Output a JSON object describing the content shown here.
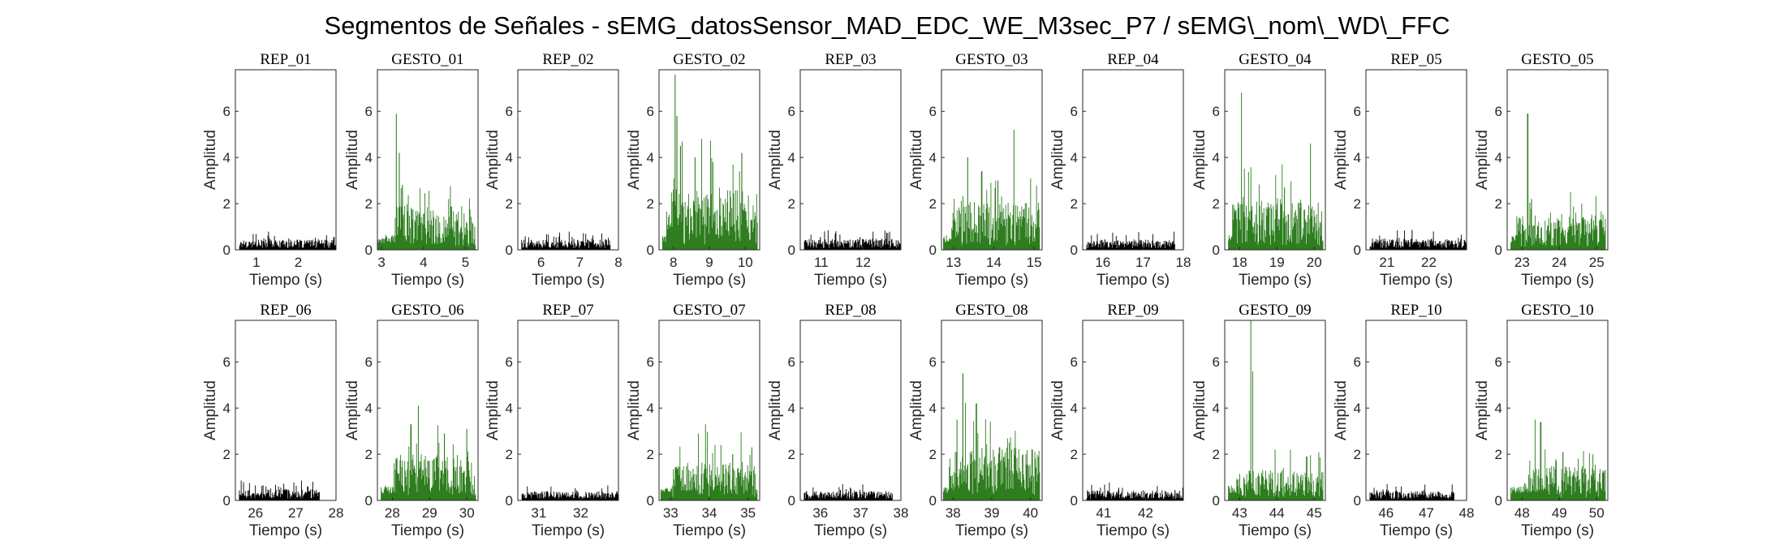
{
  "title": "Segmentos de Señales - sEMG_datosSensor_MAD_EDC_WE_M3sec_P7 / sEMG\\_nom\\_WD\\_FFC",
  "colors": {
    "rep": "#000000",
    "gesto": "#2e7d1f",
    "axis": "#262626"
  },
  "chart_data": [
    {
      "type": "bar",
      "title": "REP_01",
      "xlabel": "Tiempo (s)",
      "ylabel": "Amplitud",
      "xlim": [
        0.5,
        2.9
      ],
      "ylim": [
        0,
        7.8
      ],
      "xticks": [
        1,
        2
      ],
      "yticks": [
        0,
        2,
        4,
        6
      ],
      "kind": "rep",
      "range": [
        0.6,
        2.9
      ],
      "mean": 0.22,
      "spread": 0.35,
      "peaks": [
        [
          2.85,
          0.55
        ]
      ]
    },
    {
      "type": "bar",
      "title": "GESTO_01",
      "xlabel": "Tiempo (s)",
      "ylabel": "Amplitud",
      "xlim": [
        2.9,
        5.3
      ],
      "ylim": [
        0,
        7.8
      ],
      "xticks": [
        3,
        4,
        5
      ],
      "yticks": [
        0,
        2,
        4,
        6
      ],
      "kind": "gesto",
      "range": [
        2.9,
        5.25
      ],
      "onset": 3.3,
      "mean": 1.1,
      "spread": 1.3,
      "peaks": [
        [
          3.35,
          5.9
        ],
        [
          3.42,
          4.2
        ],
        [
          3.5,
          2.8
        ],
        [
          4.6,
          2.2
        ]
      ]
    },
    {
      "type": "bar",
      "title": "REP_02",
      "xlabel": "Tiempo (s)",
      "ylabel": "Amplitud",
      "xlim": [
        5.4,
        8.0
      ],
      "ylim": [
        0,
        7.8
      ],
      "xticks": [
        6,
        7,
        8
      ],
      "yticks": [
        0,
        2,
        4,
        6
      ],
      "kind": "rep",
      "range": [
        5.5,
        7.8
      ],
      "mean": 0.22,
      "spread": 0.35,
      "peaks": [
        [
          7.2,
          0.45
        ]
      ]
    },
    {
      "type": "bar",
      "title": "GESTO_02",
      "xlabel": "Tiempo (s)",
      "ylabel": "Amplitud",
      "xlim": [
        7.6,
        10.4
      ],
      "ylim": [
        0,
        7.8
      ],
      "xticks": [
        8,
        9,
        10
      ],
      "yticks": [
        0,
        2,
        4,
        6
      ],
      "kind": "gesto",
      "range": [
        7.7,
        10.35
      ],
      "onset": 7.8,
      "mean": 1.5,
      "spread": 1.9,
      "peaks": [
        [
          8.05,
          7.6
        ],
        [
          8.1,
          5.8
        ],
        [
          8.2,
          4.5
        ],
        [
          8.6,
          4.0
        ],
        [
          9.1,
          3.8
        ],
        [
          9.9,
          4.2
        ]
      ]
    },
    {
      "type": "bar",
      "title": "REP_03",
      "xlabel": "Tiempo (s)",
      "ylabel": "Amplitud",
      "xlim": [
        10.5,
        12.9
      ],
      "ylim": [
        0,
        7.8
      ],
      "xticks": [
        11,
        12
      ],
      "yticks": [
        0,
        2,
        4,
        6
      ],
      "kind": "rep",
      "range": [
        10.6,
        12.9
      ],
      "mean": 0.24,
      "spread": 0.35,
      "peaks": [
        [
          11.35,
          0.8
        ]
      ]
    },
    {
      "type": "bar",
      "title": "GESTO_03",
      "xlabel": "Tiempo (s)",
      "ylabel": "Amplitud",
      "xlim": [
        12.7,
        15.2
      ],
      "ylim": [
        0,
        7.8
      ],
      "xticks": [
        13,
        14,
        15
      ],
      "yticks": [
        0,
        2,
        4,
        6
      ],
      "kind": "gesto",
      "range": [
        12.75,
        15.15
      ],
      "onset": 12.95,
      "mean": 1.2,
      "spread": 1.4,
      "peaks": [
        [
          13.35,
          4.0
        ],
        [
          13.7,
          3.4
        ],
        [
          14.5,
          5.2
        ],
        [
          14.1,
          3.0
        ]
      ]
    },
    {
      "type": "bar",
      "title": "REP_04",
      "xlabel": "Tiempo (s)",
      "ylabel": "Amplitud",
      "xlim": [
        15.5,
        18.0
      ],
      "ylim": [
        0,
        7.8
      ],
      "xticks": [
        16,
        17,
        18
      ],
      "yticks": [
        0,
        2,
        4,
        6
      ],
      "kind": "rep",
      "range": [
        15.6,
        17.8
      ],
      "mean": 0.22,
      "spread": 0.3,
      "peaks": [
        [
          16.05,
          0.45
        ]
      ]
    },
    {
      "type": "bar",
      "title": "GESTO_04",
      "xlabel": "Tiempo (s)",
      "ylabel": "Amplitud",
      "xlim": [
        17.6,
        20.3
      ],
      "ylim": [
        0,
        7.8
      ],
      "xticks": [
        18,
        19,
        20
      ],
      "yticks": [
        0,
        2,
        4,
        6
      ],
      "kind": "gesto",
      "range": [
        17.7,
        20.25
      ],
      "onset": 17.8,
      "mean": 1.25,
      "spread": 1.5,
      "peaks": [
        [
          18.05,
          6.8
        ],
        [
          18.3,
          3.0
        ],
        [
          19.2,
          2.7
        ],
        [
          19.9,
          4.6
        ]
      ]
    },
    {
      "type": "bar",
      "title": "REP_05",
      "xlabel": "Tiempo (s)",
      "ylabel": "Amplitud",
      "xlim": [
        20.5,
        22.9
      ],
      "ylim": [
        0,
        7.8
      ],
      "xticks": [
        21,
        22
      ],
      "yticks": [
        0,
        2,
        4,
        6
      ],
      "kind": "rep",
      "range": [
        20.6,
        22.9
      ],
      "mean": 0.24,
      "spread": 0.35,
      "peaks": [
        [
          21.6,
          0.85
        ]
      ]
    },
    {
      "type": "bar",
      "title": "GESTO_05",
      "xlabel": "Tiempo (s)",
      "ylabel": "Amplitud",
      "xlim": [
        22.6,
        25.3
      ],
      "ylim": [
        0,
        7.8
      ],
      "xticks": [
        23,
        24,
        25
      ],
      "yticks": [
        0,
        2,
        4,
        6
      ],
      "kind": "gesto",
      "range": [
        22.7,
        25.25
      ],
      "onset": 22.85,
      "mean": 0.85,
      "spread": 1.0,
      "peaks": [
        [
          23.15,
          5.9
        ],
        [
          23.25,
          2.2
        ],
        [
          24.3,
          2.5
        ],
        [
          24.6,
          2.0
        ]
      ]
    },
    {
      "type": "bar",
      "title": "REP_06",
      "xlabel": "Tiempo (s)",
      "ylabel": "Amplitud",
      "xlim": [
        25.5,
        28.0
      ],
      "ylim": [
        0,
        7.8
      ],
      "xticks": [
        26,
        27,
        28
      ],
      "yticks": [
        0,
        2,
        4,
        6
      ],
      "kind": "rep",
      "range": [
        25.6,
        27.6
      ],
      "mean": 0.24,
      "spread": 0.35,
      "peaks": [
        [
          27.3,
          0.6
        ]
      ]
    },
    {
      "type": "bar",
      "title": "GESTO_06",
      "xlabel": "Tiempo (s)",
      "ylabel": "Amplitud",
      "xlim": [
        27.6,
        30.3
      ],
      "ylim": [
        0,
        7.8
      ],
      "xticks": [
        28,
        29,
        30
      ],
      "yticks": [
        0,
        2,
        4,
        6
      ],
      "kind": "gesto",
      "range": [
        27.7,
        30.25
      ],
      "onset": 28.0,
      "mean": 1.15,
      "spread": 1.3,
      "peaks": [
        [
          28.7,
          4.1
        ],
        [
          28.5,
          3.3
        ],
        [
          29.4,
          2.9
        ],
        [
          30.0,
          3.1
        ]
      ]
    },
    {
      "type": "bar",
      "title": "REP_07",
      "xlabel": "Tiempo (s)",
      "ylabel": "Amplitud",
      "xlim": [
        30.5,
        32.9
      ],
      "ylim": [
        0,
        7.8
      ],
      "xticks": [
        31,
        32
      ],
      "yticks": [
        0,
        2,
        4,
        6
      ],
      "kind": "rep",
      "range": [
        30.6,
        32.9
      ],
      "mean": 0.2,
      "spread": 0.3,
      "peaks": [
        [
          31.2,
          0.4
        ]
      ]
    },
    {
      "type": "bar",
      "title": "GESTO_07",
      "xlabel": "Tiempo (s)",
      "ylabel": "Amplitud",
      "xlim": [
        32.7,
        35.3
      ],
      "ylim": [
        0,
        7.8
      ],
      "xticks": [
        33,
        34,
        35
      ],
      "yticks": [
        0,
        2,
        4,
        6
      ],
      "kind": "gesto",
      "range": [
        32.75,
        35.25
      ],
      "onset": 33.05,
      "mean": 0.95,
      "spread": 1.1,
      "peaks": [
        [
          33.9,
          3.3
        ],
        [
          34.3,
          2.4
        ],
        [
          34.6,
          2.0
        ],
        [
          35.1,
          2.3
        ]
      ]
    },
    {
      "type": "bar",
      "title": "REP_08",
      "xlabel": "Tiempo (s)",
      "ylabel": "Amplitud",
      "xlim": [
        35.5,
        38.0
      ],
      "ylim": [
        0,
        7.8
      ],
      "xticks": [
        36,
        37,
        38
      ],
      "yticks": [
        0,
        2,
        4,
        6
      ],
      "kind": "rep",
      "range": [
        35.6,
        37.8
      ],
      "mean": 0.2,
      "spread": 0.3,
      "peaks": [
        [
          36.5,
          0.45
        ]
      ]
    },
    {
      "type": "bar",
      "title": "GESTO_08",
      "xlabel": "Tiempo (s)",
      "ylabel": "Amplitud",
      "xlim": [
        37.7,
        40.3
      ],
      "ylim": [
        0,
        7.8
      ],
      "xticks": [
        38,
        39,
        40
      ],
      "yticks": [
        0,
        2,
        4,
        6
      ],
      "kind": "gesto",
      "range": [
        37.75,
        40.25
      ],
      "onset": 37.9,
      "mean": 1.3,
      "spread": 1.6,
      "peaks": [
        [
          38.25,
          5.5
        ],
        [
          38.1,
          3.5
        ],
        [
          38.6,
          4.2
        ],
        [
          39.2,
          2.3
        ]
      ]
    },
    {
      "type": "bar",
      "title": "REP_09",
      "xlabel": "Tiempo (s)",
      "ylabel": "Amplitud",
      "xlim": [
        40.5,
        42.9
      ],
      "ylim": [
        0,
        7.8
      ],
      "xticks": [
        41,
        42
      ],
      "yticks": [
        0,
        2,
        4,
        6
      ],
      "kind": "rep",
      "range": [
        40.6,
        42.9
      ],
      "mean": 0.22,
      "spread": 0.3,
      "peaks": [
        [
          42.7,
          0.45
        ]
      ]
    },
    {
      "type": "bar",
      "title": "GESTO_09",
      "xlabel": "Tiempo (s)",
      "ylabel": "Amplitud",
      "xlim": [
        42.6,
        45.3
      ],
      "ylim": [
        0,
        7.8
      ],
      "xticks": [
        43,
        44,
        45
      ],
      "yticks": [
        0,
        2,
        4,
        6
      ],
      "kind": "gesto",
      "range": [
        42.7,
        45.25
      ],
      "onset": 42.9,
      "mean": 0.75,
      "spread": 0.9,
      "peaks": [
        [
          43.3,
          7.8
        ],
        [
          43.35,
          5.6
        ],
        [
          43.95,
          2.2
        ],
        [
          44.8,
          1.9
        ]
      ]
    },
    {
      "type": "bar",
      "title": "REP_10",
      "xlabel": "Tiempo (s)",
      "ylabel": "Amplitud",
      "xlim": [
        45.5,
        48.0
      ],
      "ylim": [
        0,
        7.8
      ],
      "xticks": [
        46,
        47,
        48
      ],
      "yticks": [
        0,
        2,
        4,
        6
      ],
      "kind": "rep",
      "range": [
        45.6,
        47.7
      ],
      "mean": 0.2,
      "spread": 0.3,
      "peaks": [
        [
          46.9,
          0.4
        ]
      ]
    },
    {
      "type": "bar",
      "title": "GESTO_10",
      "xlabel": "Tiempo (s)",
      "ylabel": "Amplitud",
      "xlim": [
        47.6,
        50.3
      ],
      "ylim": [
        0,
        7.8
      ],
      "xticks": [
        48,
        49,
        50
      ],
      "yticks": [
        0,
        2,
        4,
        6
      ],
      "kind": "gesto",
      "range": [
        47.7,
        50.25
      ],
      "onset": 48.05,
      "mean": 0.85,
      "spread": 1.0,
      "peaks": [
        [
          48.35,
          3.5
        ],
        [
          48.5,
          3.4
        ],
        [
          49.1,
          2.1
        ],
        [
          49.9,
          2.0
        ]
      ]
    }
  ]
}
